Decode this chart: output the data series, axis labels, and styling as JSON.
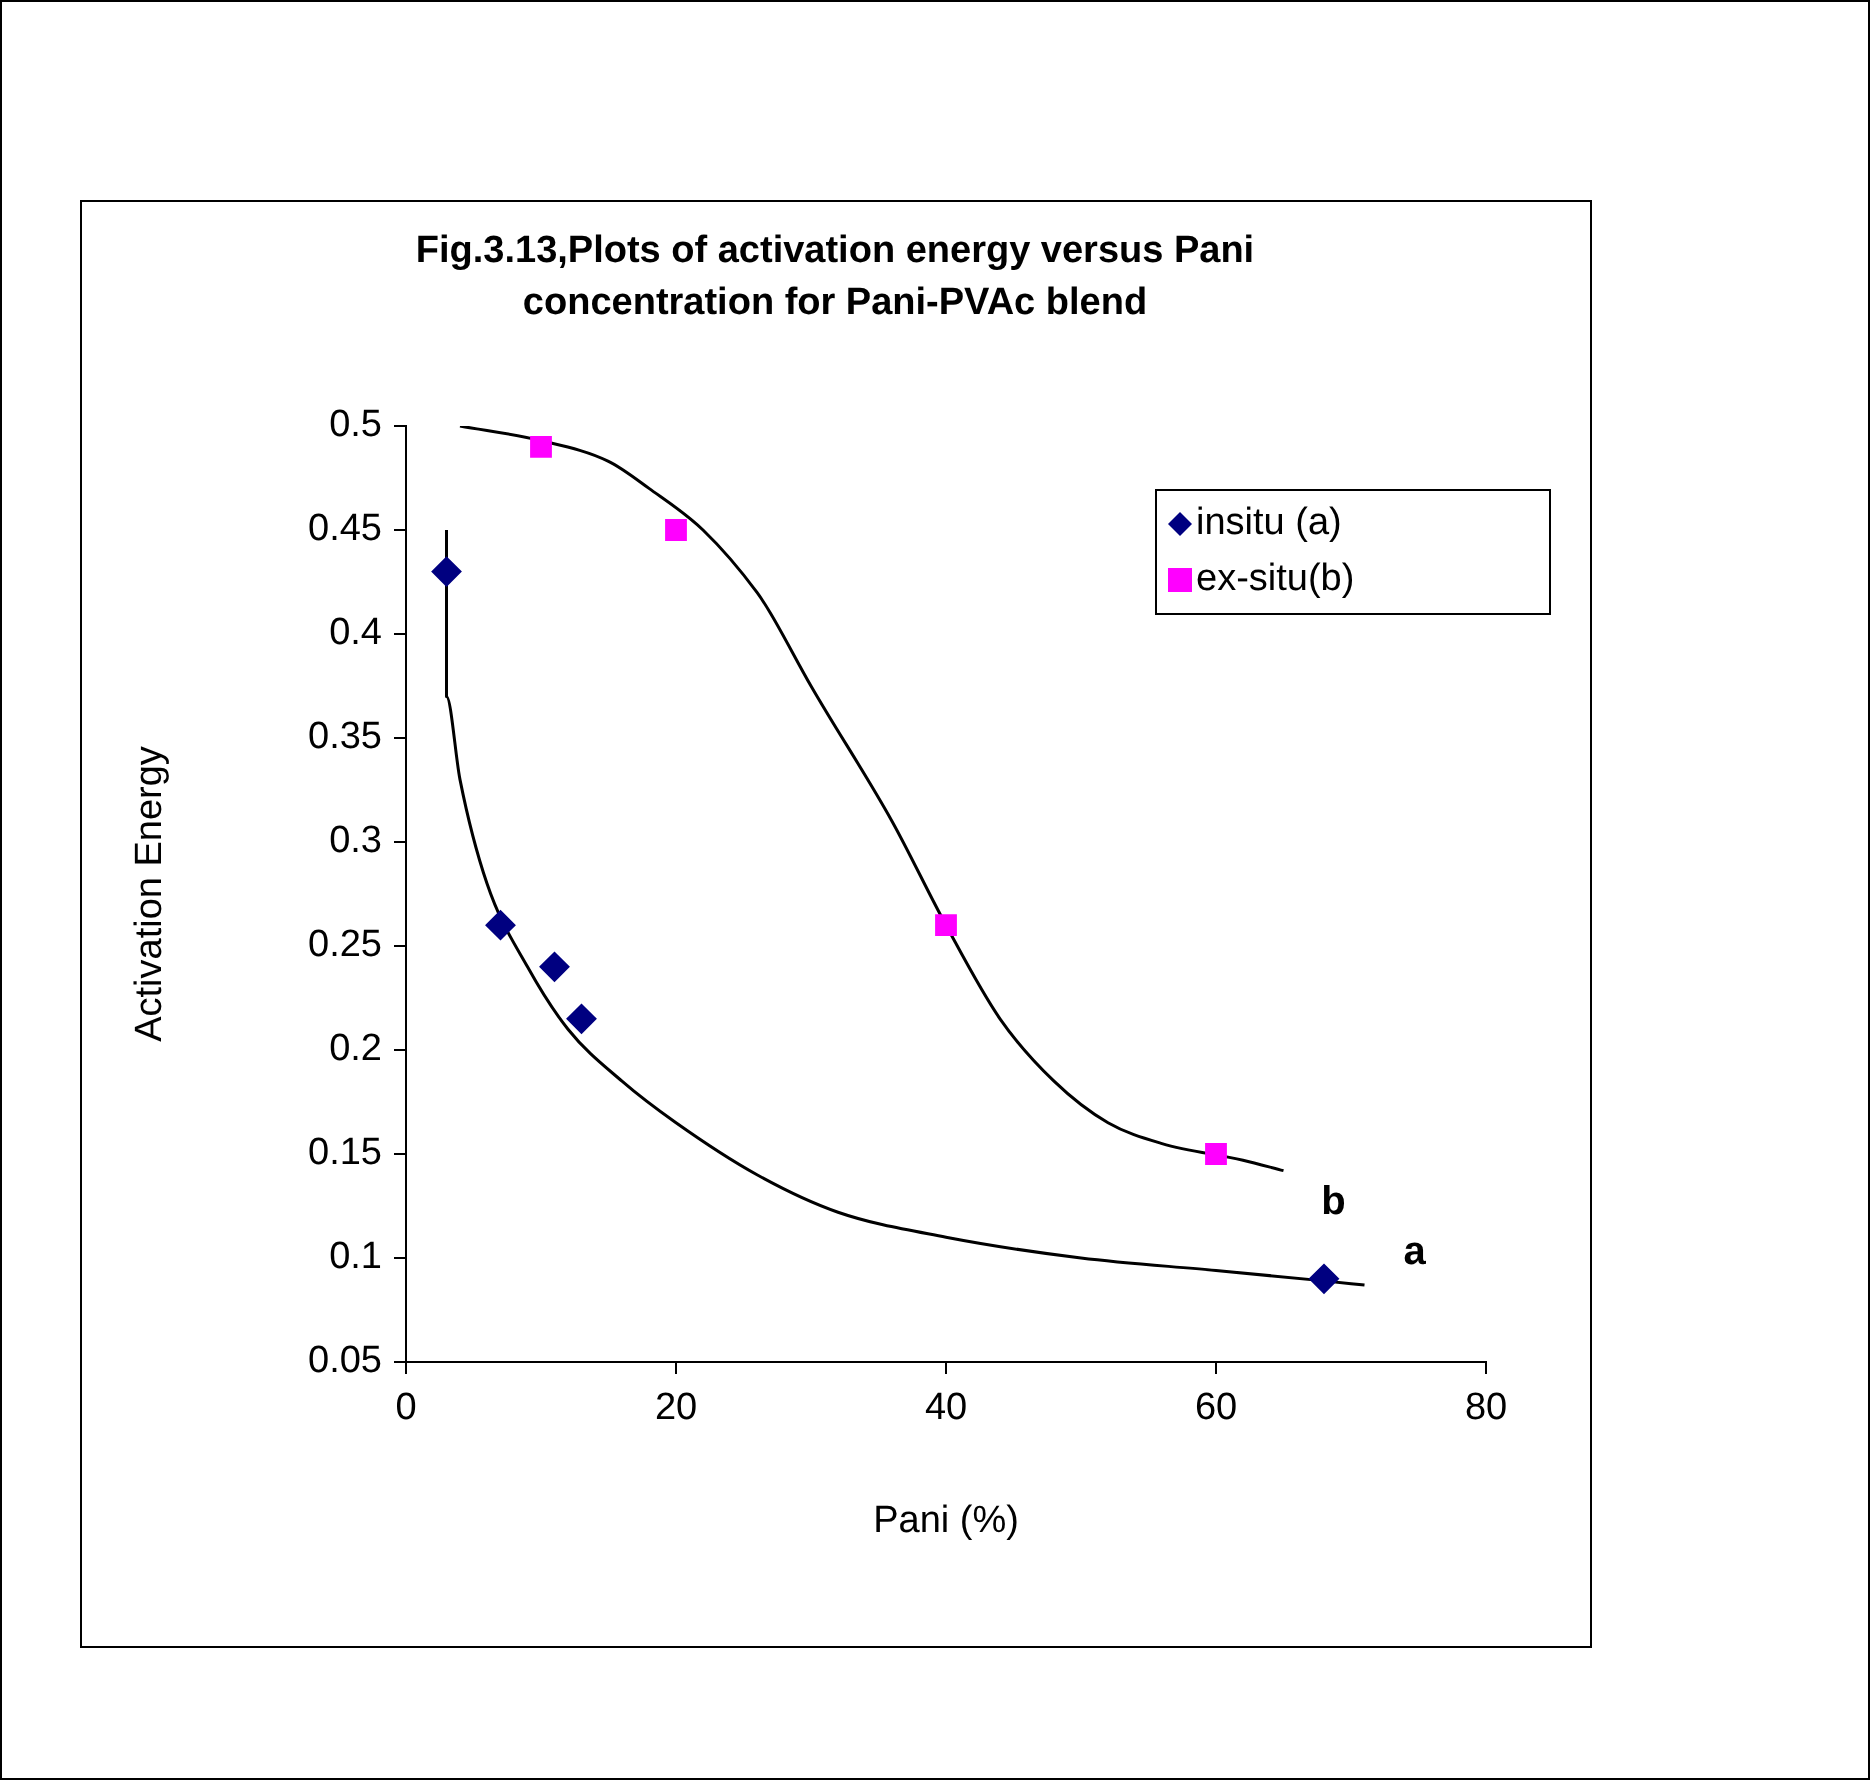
{
  "chart_data": {
    "type": "scatter",
    "title": "Fig.3.13,Plots of activation energy versus Pani concentration for Pani-PVAc blend",
    "xlabel": "Pani (%)",
    "ylabel": "Activation Energy",
    "xlim": [
      0,
      80
    ],
    "xticks": [
      0,
      20,
      40,
      60,
      80
    ],
    "ylim": [
      0.05,
      0.5
    ],
    "yticks": [
      0.05,
      0.1,
      0.15,
      0.2,
      0.25,
      0.3,
      0.35,
      0.4,
      0.45,
      0.5
    ],
    "grid": false,
    "legend": "top right",
    "series": [
      {
        "name": "insitu (a)",
        "color": "#000080",
        "marker": "diamond",
        "x": [
          3,
          7,
          11,
          13,
          68
        ],
        "values": [
          0.43,
          0.26,
          0.24,
          0.215,
          0.09
        ]
      },
      {
        "name": "ex-situ(b)",
        "color": "#ff00ff",
        "marker": "square",
        "x": [
          10,
          20,
          40,
          60
        ],
        "values": [
          0.49,
          0.45,
          0.26,
          0.15
        ]
      },
      {
        "type": "line",
        "name": "a",
        "color": "#000000",
        "marker": "none",
        "x": [
          3,
          3,
          4,
          6,
          9,
          12,
          16,
          20,
          26,
          32,
          40,
          50,
          60,
          68,
          71
        ],
        "values": [
          0.45,
          0.37,
          0.33,
          0.28,
          0.24,
          0.21,
          0.185,
          0.165,
          0.14,
          0.122,
          0.11,
          0.1,
          0.094,
          0.089,
          0.087
        ]
      },
      {
        "type": "line",
        "name": "b",
        "color": "#000000",
        "marker": "none",
        "x": [
          4,
          10,
          15,
          18,
          22,
          26,
          27,
          30,
          36,
          40,
          44,
          48,
          52,
          56,
          62,
          65
        ],
        "values": [
          0.5,
          0.493,
          0.483,
          0.47,
          0.45,
          0.42,
          0.41,
          0.375,
          0.31,
          0.26,
          0.215,
          0.185,
          0.165,
          0.155,
          0.147,
          0.142
        ]
      }
    ]
  }
}
